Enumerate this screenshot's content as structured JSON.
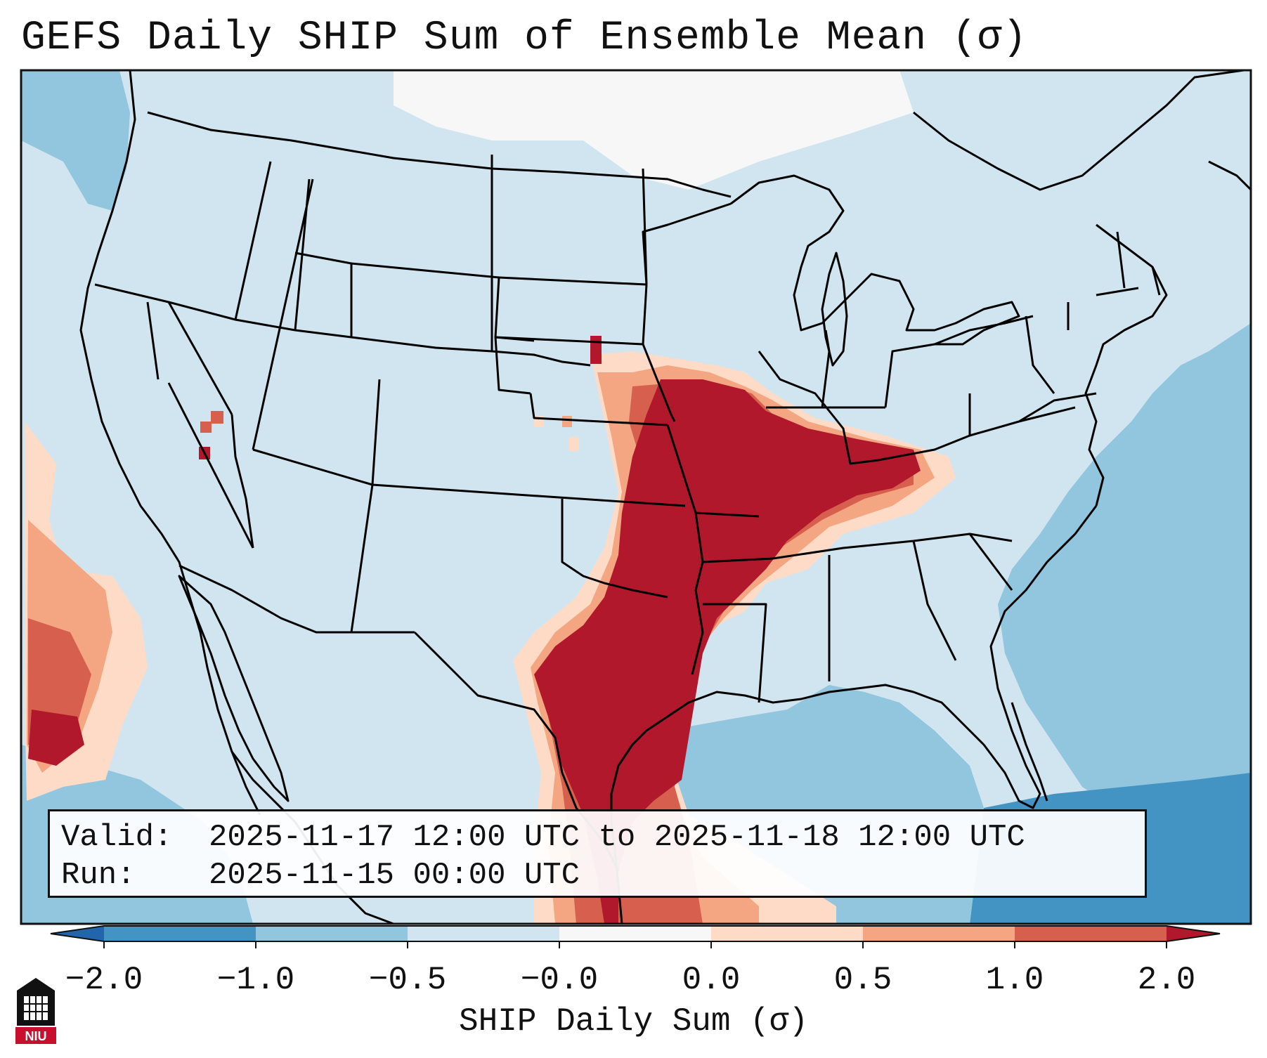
{
  "header": {
    "title": "GEFS Daily SHIP Sum of Ensemble Mean (σ)"
  },
  "info_box": {
    "valid_label": "Valid:",
    "valid_value": "2025-11-17 12:00 UTC to 2025-11-18 12:00 UTC",
    "run_label": "Run:",
    "run_value": "2025-11-15 00:00 UTC"
  },
  "colorbar": {
    "label": "SHIP Daily Sum (σ)",
    "ticks": [
      "−2.0",
      "−1.0",
      "−0.5",
      "−0.0",
      "0.0",
      "0.5",
      "1.0",
      "2.0"
    ],
    "colors": {
      "under": "#2166ac",
      "b1": "#4393c3",
      "b2": "#92c5de",
      "b3": "#d1e5f0",
      "b4": "#f7f7f7",
      "b5": "#fddbc7",
      "b6": "#f4a582",
      "b7": "#d6604d",
      "over": "#b2182b"
    }
  },
  "map": {
    "region": "Contiguous United States and surrounding waters",
    "colors": {
      "land_base": "#d1e5f0",
      "ocean": "#92c5de",
      "deep": "#4393c3",
      "extreme": "#b2182b",
      "moderate": "#d6604d",
      "slight": "#f4a582",
      "marginal": "#fddbc7",
      "neutral": "#f7f7f7"
    }
  },
  "logo": {
    "text": "NIU"
  }
}
